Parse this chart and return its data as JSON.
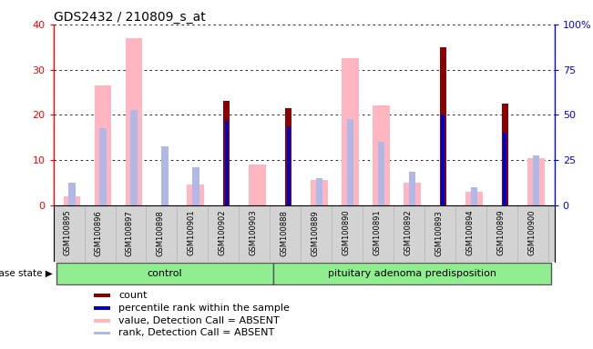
{
  "title": "GDS2432 / 210809_s_at",
  "samples": [
    "GSM100895",
    "GSM100896",
    "GSM100897",
    "GSM100898",
    "GSM100901",
    "GSM100902",
    "GSM100903",
    "GSM100888",
    "GSM100889",
    "GSM100890",
    "GSM100891",
    "GSM100892",
    "GSM100893",
    "GSM100894",
    "GSM100899",
    "GSM100900"
  ],
  "count": [
    0,
    0,
    0,
    0,
    0,
    23.0,
    0,
    21.5,
    0,
    0,
    0,
    0,
    35.0,
    0,
    22.5,
    0
  ],
  "percentile_rank": [
    0,
    0,
    0,
    0,
    0,
    46.5,
    0,
    43.5,
    0,
    0,
    0,
    0,
    50.0,
    0,
    40.0,
    0
  ],
  "value_absent": [
    2.0,
    26.5,
    37.0,
    0,
    4.5,
    0,
    9.0,
    0,
    5.5,
    32.5,
    22.0,
    5.0,
    0,
    3.0,
    0,
    10.5
  ],
  "rank_absent": [
    12.5,
    42.5,
    52.5,
    32.5,
    21.0,
    0,
    0,
    0,
    15.0,
    47.5,
    35.0,
    18.5,
    0,
    10.0,
    0,
    27.5
  ],
  "control_count": 7,
  "ylim_left": [
    0,
    40
  ],
  "ylim_right": [
    0,
    100
  ],
  "yticks_left": [
    0,
    10,
    20,
    30,
    40
  ],
  "yticks_right": [
    0,
    25,
    50,
    75,
    100
  ],
  "ytick_labels_right": [
    "0",
    "25",
    "50",
    "75",
    "100%"
  ],
  "color_count": "#8B0000",
  "color_percentile": "#0000CC",
  "color_value_absent": "#FFB6C1",
  "color_rank_absent": "#B0B8E8",
  "background_color": "#ffffff",
  "xticklabels_area_color": "#d3d3d3",
  "group_area_color": "#90ee90",
  "legend_items": [
    [
      "#8B0000",
      "count"
    ],
    [
      "#0000CC",
      "percentile rank within the sample"
    ],
    [
      "#FFB6C1",
      "value, Detection Call = ABSENT"
    ],
    [
      "#B0B8E8",
      "rank, Detection Call = ABSENT"
    ]
  ]
}
